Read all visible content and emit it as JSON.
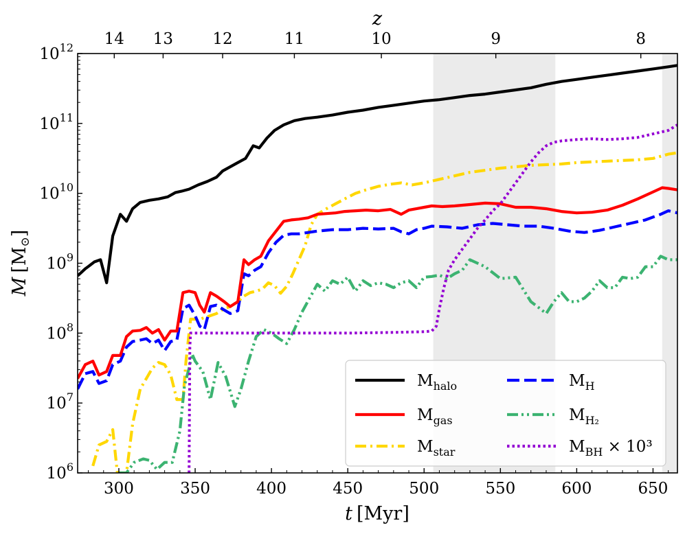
{
  "chart_data": {
    "type": "line",
    "xlabel": "t [Myr]",
    "xlabel_parts": {
      "var": "t",
      "unit": "[Myr]"
    },
    "ylabel": "M [M⊙]",
    "ylabel_parts": {
      "var": "M",
      "unit_open": "[M",
      "unit_sub": "⊙",
      "unit_close": "]"
    },
    "top_axis_label": "z",
    "xlim": [
      273,
      666
    ],
    "ylim_log10": [
      6,
      12
    ],
    "yscale": "log",
    "x_ticks": [
      {
        "value": 300,
        "label": "300"
      },
      {
        "value": 350,
        "label": "350"
      },
      {
        "value": 400,
        "label": "400"
      },
      {
        "value": 450,
        "label": "450"
      },
      {
        "value": 500,
        "label": "500"
      },
      {
        "value": 550,
        "label": "550"
      },
      {
        "value": 600,
        "label": "600"
      },
      {
        "value": 650,
        "label": "650"
      }
    ],
    "y_ticks": [
      {
        "exp": 6,
        "base": "10",
        "sup": "6"
      },
      {
        "exp": 7,
        "base": "10",
        "sup": "7"
      },
      {
        "exp": 8,
        "base": "10",
        "sup": "8"
      },
      {
        "exp": 9,
        "base": "10",
        "sup": "9"
      },
      {
        "exp": 10,
        "base": "10",
        "sup": "10"
      },
      {
        "exp": 11,
        "base": "10",
        "sup": "11"
      },
      {
        "exp": 12,
        "base": "10",
        "sup": "12"
      }
    ],
    "top_ticks": [
      {
        "t": 297,
        "label": "14"
      },
      {
        "t": 329,
        "label": "13"
      },
      {
        "t": 368,
        "label": "12"
      },
      {
        "t": 415,
        "label": "11"
      },
      {
        "t": 472,
        "label": "10"
      },
      {
        "t": 547,
        "label": "9"
      },
      {
        "t": 642,
        "label": "8"
      }
    ],
    "shaded_regions": [
      [
        506,
        586
      ],
      [
        656,
        666
      ]
    ],
    "legend": {
      "position": "lower-right",
      "columns": 2
    },
    "series": [
      {
        "key": "halo",
        "name": "M",
        "sub": "halo",
        "color": "#000000",
        "style": "solid",
        "x": [
          273,
          278,
          281,
          284,
          288,
          292,
          296,
          301,
          305,
          309,
          314,
          320,
          326,
          332,
          337,
          341,
          346,
          352,
          358,
          364,
          368,
          373,
          378,
          383,
          388,
          392,
          397,
          402,
          408,
          415,
          422,
          430,
          440,
          450,
          460,
          470,
          480,
          490,
          500,
          510,
          520,
          530,
          540,
          550,
          560,
          570,
          580,
          590,
          600,
          610,
          620,
          630,
          640,
          650,
          660,
          666
        ],
        "log10_values": [
          8.82,
          8.92,
          8.97,
          9.02,
          9.05,
          8.72,
          9.39,
          9.7,
          9.6,
          9.78,
          9.87,
          9.9,
          9.92,
          9.95,
          10.01,
          10.03,
          10.06,
          10.12,
          10.17,
          10.23,
          10.32,
          10.38,
          10.44,
          10.5,
          10.68,
          10.65,
          10.79,
          10.9,
          10.98,
          11.04,
          11.07,
          11.09,
          11.12,
          11.16,
          11.19,
          11.23,
          11.26,
          11.29,
          11.32,
          11.34,
          11.37,
          11.4,
          11.42,
          11.45,
          11.48,
          11.51,
          11.56,
          11.6,
          11.63,
          11.66,
          11.69,
          11.72,
          11.75,
          11.78,
          11.81,
          11.83
        ]
      },
      {
        "key": "gas",
        "name": "M",
        "sub": "gas",
        "color": "#ff0000",
        "style": "solid",
        "x": [
          273,
          278,
          283,
          287,
          292,
          296,
          301,
          305,
          309,
          314,
          318,
          322,
          326,
          330,
          334,
          338,
          342,
          346,
          350,
          353,
          356,
          360,
          364,
          369,
          373,
          378,
          382,
          385,
          389,
          393,
          398,
          403,
          408,
          413,
          418,
          424,
          430,
          436,
          442,
          448,
          455,
          462,
          470,
          478,
          485,
          490,
          495,
          500,
          505,
          512,
          520,
          530,
          540,
          550,
          560,
          570,
          580,
          590,
          600,
          610,
          620,
          630,
          640,
          650,
          656,
          660,
          666
        ],
        "log10_values": [
          7.35,
          7.55,
          7.6,
          7.4,
          7.45,
          7.68,
          7.68,
          7.95,
          8.03,
          8.04,
          8.08,
          8.0,
          8.05,
          7.9,
          8.03,
          8.03,
          8.58,
          8.6,
          8.58,
          8.4,
          8.3,
          8.58,
          8.53,
          8.45,
          8.38,
          8.45,
          9.05,
          8.98,
          9.05,
          9.1,
          9.32,
          9.46,
          9.6,
          9.62,
          9.63,
          9.65,
          9.7,
          9.71,
          9.72,
          9.74,
          9.75,
          9.76,
          9.75,
          9.77,
          9.7,
          9.76,
          9.78,
          9.8,
          9.82,
          9.81,
          9.82,
          9.84,
          9.86,
          9.85,
          9.8,
          9.8,
          9.78,
          9.74,
          9.72,
          9.73,
          9.76,
          9.83,
          9.92,
          10.02,
          10.08,
          10.07,
          10.05
        ]
      },
      {
        "key": "hi",
        "name": "M",
        "sub": "H",
        "color": "#0000ff",
        "style": "dashed",
        "x": [
          273,
          278,
          283,
          287,
          292,
          296,
          301,
          305,
          309,
          314,
          318,
          322,
          326,
          330,
          334,
          338,
          342,
          346,
          350,
          353,
          356,
          360,
          364,
          369,
          373,
          378,
          382,
          385,
          389,
          393,
          398,
          403,
          408,
          413,
          418,
          424,
          430,
          440,
          450,
          460,
          470,
          480,
          485,
          490,
          495,
          500,
          505,
          515,
          525,
          535,
          545,
          555,
          565,
          575,
          585,
          595,
          605,
          615,
          625,
          635,
          645,
          655,
          660,
          666
        ],
        "log10_values": [
          7.2,
          7.42,
          7.45,
          7.28,
          7.32,
          7.55,
          7.6,
          7.8,
          7.88,
          7.9,
          7.92,
          7.85,
          7.9,
          7.75,
          7.88,
          7.9,
          8.35,
          8.4,
          8.25,
          8.1,
          8.05,
          8.38,
          8.4,
          8.33,
          8.28,
          8.32,
          8.85,
          8.82,
          8.9,
          8.95,
          9.15,
          9.3,
          9.4,
          9.42,
          9.42,
          9.44,
          9.46,
          9.48,
          9.48,
          9.5,
          9.49,
          9.5,
          9.45,
          9.42,
          9.48,
          9.5,
          9.53,
          9.52,
          9.5,
          9.55,
          9.57,
          9.55,
          9.53,
          9.53,
          9.5,
          9.46,
          9.44,
          9.47,
          9.52,
          9.57,
          9.62,
          9.7,
          9.75,
          9.72
        ]
      },
      {
        "key": "star",
        "name": "M",
        "sub": "star",
        "color": "#ffd700",
        "style": "dashdot",
        "x": [
          283,
          287,
          292,
          296,
          299,
          305,
          309,
          314,
          318,
          322,
          326,
          330,
          334,
          338,
          342,
          344,
          347,
          350,
          353,
          356,
          360,
          364,
          369,
          373,
          378,
          382,
          386,
          390,
          394,
          398,
          402,
          406,
          410,
          414,
          418,
          422,
          426,
          430,
          436,
          442,
          448,
          455,
          462,
          470,
          478,
          485,
          492,
          500,
          510,
          520,
          530,
          540,
          550,
          560,
          570,
          580,
          590,
          600,
          610,
          620,
          630,
          640,
          650,
          660,
          666
        ],
        "log10_values": [
          6.1,
          6.4,
          6.45,
          6.62,
          6.0,
          6.0,
          6.7,
          7.2,
          7.35,
          7.5,
          7.58,
          7.55,
          7.4,
          7.05,
          7.05,
          7.6,
          8.2,
          8.2,
          8.2,
          8.22,
          8.25,
          8.28,
          8.35,
          8.38,
          8.45,
          8.53,
          8.58,
          8.6,
          8.63,
          8.72,
          8.68,
          8.57,
          8.67,
          8.85,
          9.05,
          9.25,
          9.55,
          9.7,
          9.78,
          9.85,
          9.92,
          10.0,
          10.05,
          10.1,
          10.13,
          10.15,
          10.12,
          10.15,
          10.2,
          10.25,
          10.3,
          10.33,
          10.36,
          10.38,
          10.4,
          10.41,
          10.42,
          10.44,
          10.45,
          10.46,
          10.47,
          10.48,
          10.5,
          10.56,
          10.58
        ]
      },
      {
        "key": "h2",
        "name": "M",
        "sub": "H₂",
        "color": "#3cb371",
        "style": "dashdotdot",
        "x": [
          300,
          305,
          310,
          316,
          320,
          325,
          330,
          335,
          340,
          343,
          346,
          348,
          350,
          355,
          360,
          365,
          370,
          376,
          380,
          385,
          390,
          395,
          400,
          405,
          410,
          415,
          420,
          425,
          430,
          435,
          440,
          445,
          450,
          455,
          460,
          465,
          470,
          475,
          480,
          485,
          490,
          495,
          500,
          505,
          510,
          515,
          520,
          525,
          530,
          540,
          550,
          560,
          570,
          576,
          580,
          585,
          590,
          595,
          600,
          605,
          610,
          615,
          620,
          625,
          630,
          635,
          640,
          645,
          650,
          655,
          660,
          666
        ],
        "log10_values": [
          6.0,
          6.0,
          6.15,
          6.2,
          6.18,
          6.05,
          6.15,
          6.15,
          6.6,
          7.25,
          7.5,
          7.7,
          7.6,
          7.45,
          7.05,
          7.58,
          7.38,
          6.95,
          7.2,
          7.6,
          7.95,
          8.05,
          8.0,
          7.92,
          7.85,
          8.05,
          8.3,
          8.5,
          8.7,
          8.6,
          8.75,
          8.7,
          8.8,
          8.6,
          8.75,
          8.68,
          8.72,
          8.7,
          8.65,
          8.72,
          8.75,
          8.65,
          8.8,
          8.81,
          8.83,
          8.78,
          8.85,
          8.9,
          9.05,
          8.95,
          8.78,
          8.8,
          8.45,
          8.35,
          8.28,
          8.45,
          8.58,
          8.45,
          8.45,
          8.5,
          8.6,
          8.75,
          8.65,
          8.65,
          8.8,
          8.78,
          8.8,
          8.95,
          8.95,
          9.1,
          9.05,
          9.05
        ]
      },
      {
        "key": "bh",
        "name": "M",
        "sub": "BH",
        "suffix": " × 10³",
        "color": "#9400d3",
        "style": "dotted",
        "x": [
          346,
          346.5,
          347,
          360,
          400,
          450,
          480,
          500,
          505,
          508,
          510,
          513,
          516,
          520,
          525,
          530,
          535,
          540,
          545,
          550,
          555,
          560,
          565,
          570,
          575,
          580,
          585,
          590,
          600,
          610,
          620,
          630,
          640,
          650,
          660,
          666
        ],
        "log10_values": [
          6.0,
          7.8,
          8.0,
          8.0,
          8.0,
          8.0,
          8.01,
          8.02,
          8.03,
          8.1,
          8.35,
          8.65,
          8.9,
          9.05,
          9.2,
          9.35,
          9.5,
          9.62,
          9.75,
          9.85,
          10.0,
          10.15,
          10.3,
          10.45,
          10.58,
          10.68,
          10.73,
          10.75,
          10.77,
          10.78,
          10.77,
          10.78,
          10.8,
          10.85,
          10.9,
          10.98
        ]
      }
    ]
  }
}
